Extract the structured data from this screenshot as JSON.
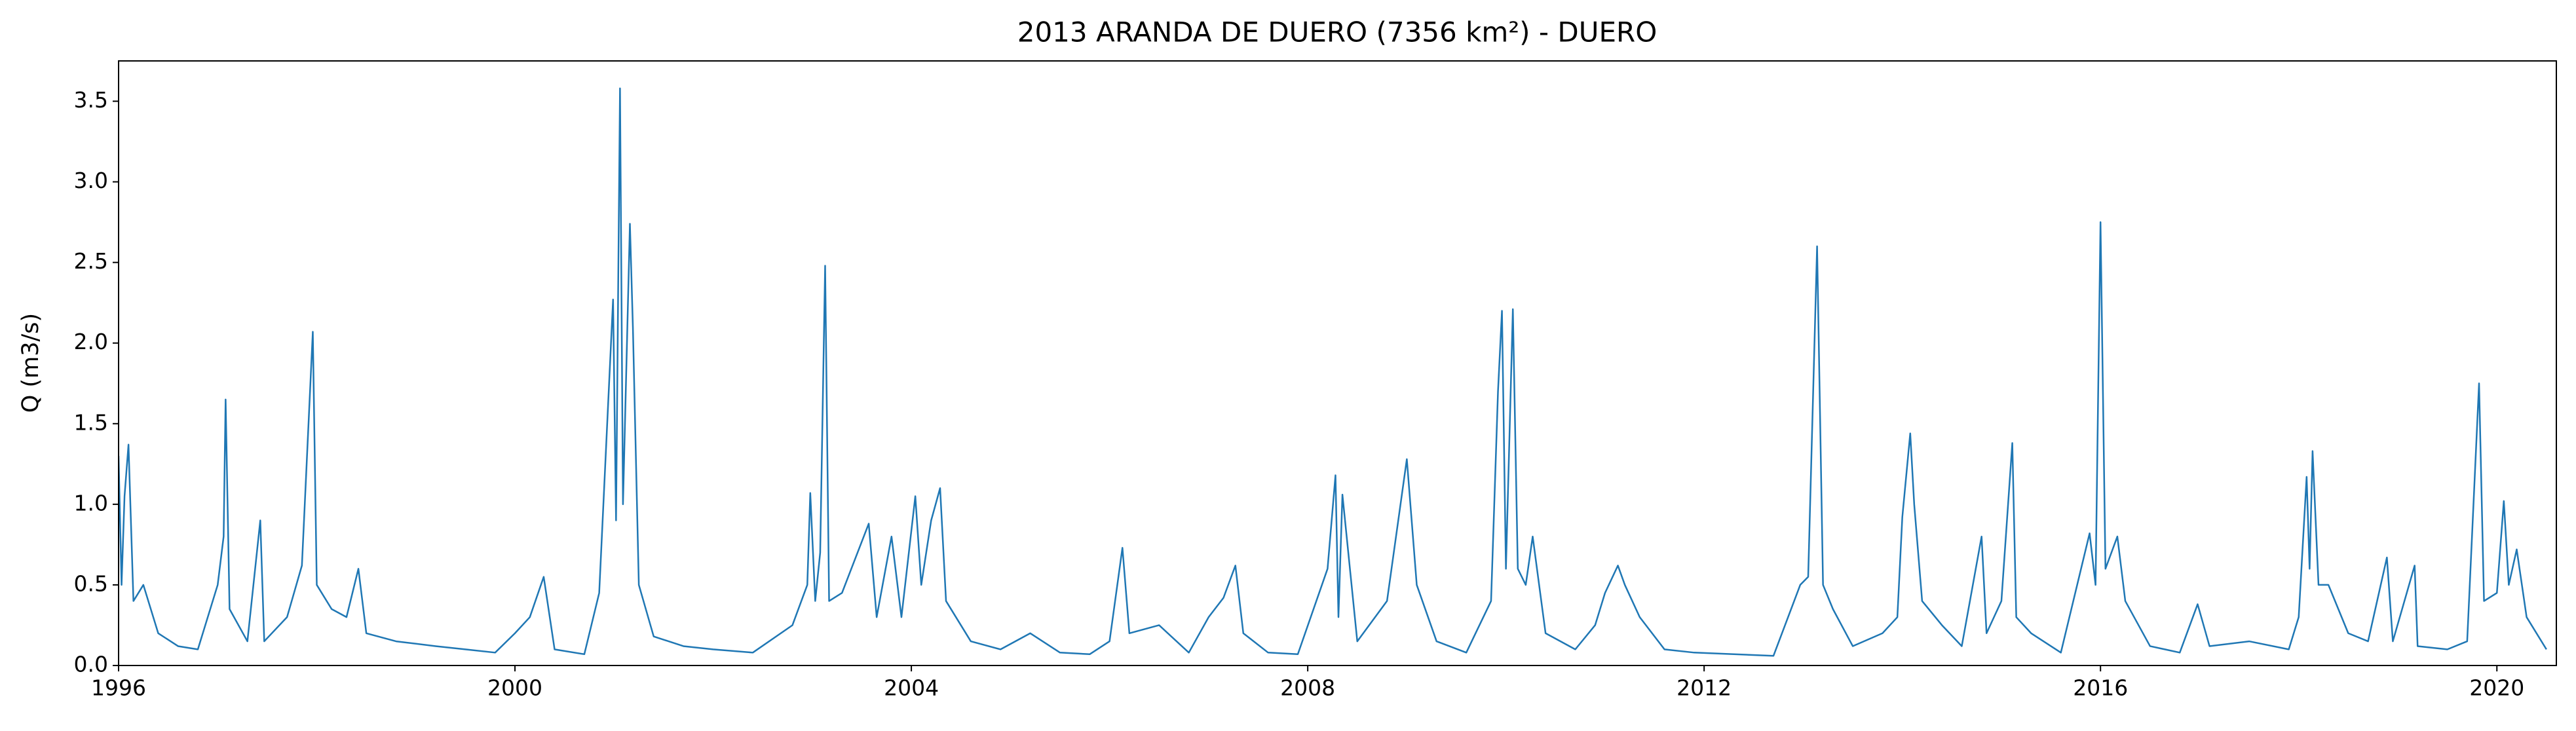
{
  "chart_data": {
    "type": "line",
    "title": "2013 ARANDA DE DUERO (7356 km²) - DUERO",
    "y_label": "Q (m3/s)",
    "x": [
      1996.0,
      1996.03,
      1996.06,
      1996.1,
      1996.15,
      1996.25,
      1996.4,
      1996.6,
      1996.8,
      1997.0,
      1997.06,
      1997.08,
      1997.12,
      1997.3,
      1997.43,
      1997.47,
      1997.7,
      1997.85,
      1997.96,
      1998.0,
      1998.15,
      1998.3,
      1998.42,
      1998.5,
      1998.8,
      1999.2,
      1999.5,
      1999.8,
      2000.0,
      2000.15,
      2000.29,
      2000.4,
      2000.7,
      2000.85,
      2000.99,
      2001.02,
      2001.06,
      2001.09,
      2001.16,
      2001.19,
      2001.25,
      2001.4,
      2001.7,
      2002.0,
      2002.4,
      2002.8,
      2002.95,
      2002.98,
      2003.03,
      2003.08,
      2003.13,
      2003.17,
      2003.3,
      2003.57,
      2003.65,
      2003.8,
      2003.9,
      2004.04,
      2004.1,
      2004.2,
      2004.29,
      2004.35,
      2004.6,
      2004.9,
      2005.2,
      2005.5,
      2005.8,
      2006.0,
      2006.13,
      2006.2,
      2006.5,
      2006.8,
      2007.0,
      2007.15,
      2007.27,
      2007.35,
      2007.6,
      2007.9,
      2008.2,
      2008.28,
      2008.31,
      2008.35,
      2008.5,
      2008.8,
      2009.0,
      2009.1,
      2009.3,
      2009.6,
      2009.85,
      2009.92,
      2009.96,
      2010.0,
      2010.07,
      2010.12,
      2010.2,
      2010.27,
      2010.4,
      2010.7,
      2010.9,
      2011.0,
      2011.13,
      2011.2,
      2011.35,
      2011.6,
      2011.9,
      2012.3,
      2012.7,
      2012.97,
      2013.05,
      2013.14,
      2013.2,
      2013.3,
      2013.5,
      2013.8,
      2013.95,
      2014.0,
      2014.08,
      2014.12,
      2014.2,
      2014.4,
      2014.6,
      2014.8,
      2014.85,
      2015.0,
      2015.11,
      2015.15,
      2015.3,
      2015.6,
      2015.89,
      2015.95,
      2016.0,
      2016.05,
      2016.17,
      2016.25,
      2016.5,
      2016.8,
      2016.98,
      2017.1,
      2017.5,
      2017.9,
      2018.0,
      2018.08,
      2018.11,
      2018.14,
      2018.2,
      2018.3,
      2018.5,
      2018.7,
      2018.89,
      2018.95,
      2019.17,
      2019.2,
      2019.5,
      2019.7,
      2019.82,
      2019.87,
      2020.0,
      2020.07,
      2020.12,
      2020.2,
      2020.3,
      2020.5
    ],
    "series": [
      {
        "color": "#1f77b4",
        "values": [
          1.3,
          0.5,
          1.05,
          1.37,
          0.4,
          0.5,
          0.2,
          0.12,
          0.1,
          0.5,
          0.8,
          1.65,
          0.35,
          0.15,
          0.9,
          0.15,
          0.3,
          0.62,
          2.07,
          0.5,
          0.35,
          0.3,
          0.6,
          0.2,
          0.15,
          0.12,
          0.1,
          0.08,
          0.2,
          0.3,
          0.55,
          0.1,
          0.07,
          0.45,
          2.27,
          0.9,
          3.58,
          1.0,
          2.74,
          2.1,
          0.5,
          0.18,
          0.12,
          0.1,
          0.08,
          0.25,
          0.5,
          1.07,
          0.4,
          0.7,
          2.48,
          0.4,
          0.45,
          0.88,
          0.3,
          0.8,
          0.3,
          1.05,
          0.5,
          0.9,
          1.1,
          0.4,
          0.15,
          0.1,
          0.2,
          0.08,
          0.07,
          0.15,
          0.73,
          0.2,
          0.25,
          0.08,
          0.3,
          0.42,
          0.62,
          0.2,
          0.08,
          0.07,
          0.6,
          1.18,
          0.3,
          1.06,
          0.15,
          0.4,
          1.28,
          0.5,
          0.15,
          0.08,
          0.4,
          1.7,
          2.2,
          0.6,
          2.21,
          0.6,
          0.5,
          0.8,
          0.2,
          0.1,
          0.25,
          0.45,
          0.62,
          0.5,
          0.3,
          0.1,
          0.08,
          0.07,
          0.06,
          0.5,
          0.55,
          2.6,
          0.5,
          0.35,
          0.12,
          0.2,
          0.3,
          0.92,
          1.44,
          1.0,
          0.4,
          0.25,
          0.12,
          0.8,
          0.2,
          0.4,
          1.38,
          0.3,
          0.2,
          0.08,
          0.82,
          0.5,
          2.75,
          0.6,
          0.8,
          0.4,
          0.12,
          0.08,
          0.38,
          0.12,
          0.15,
          0.1,
          0.3,
          1.17,
          0.6,
          1.33,
          0.5,
          0.5,
          0.2,
          0.15,
          0.67,
          0.15,
          0.62,
          0.12,
          0.1,
          0.15,
          1.75,
          0.4,
          0.45,
          1.02,
          0.5,
          0.72,
          0.3,
          0.1
        ]
      }
    ],
    "xlim": [
      1996,
      2020.6
    ],
    "xticks": [
      1996,
      2000,
      2004,
      2008,
      2012,
      2016,
      2020
    ],
    "ylim": [
      0,
      3.75
    ],
    "yticks": [
      {
        "value": 0,
        "label": "0.0"
      },
      0.5,
      {
        "value": 1,
        "label": "1.0"
      },
      1.5,
      {
        "value": 2,
        "label": "2.0"
      },
      2.5,
      {
        "value": 3,
        "label": "3.0"
      },
      3.5
    ],
    "grid": false
  }
}
